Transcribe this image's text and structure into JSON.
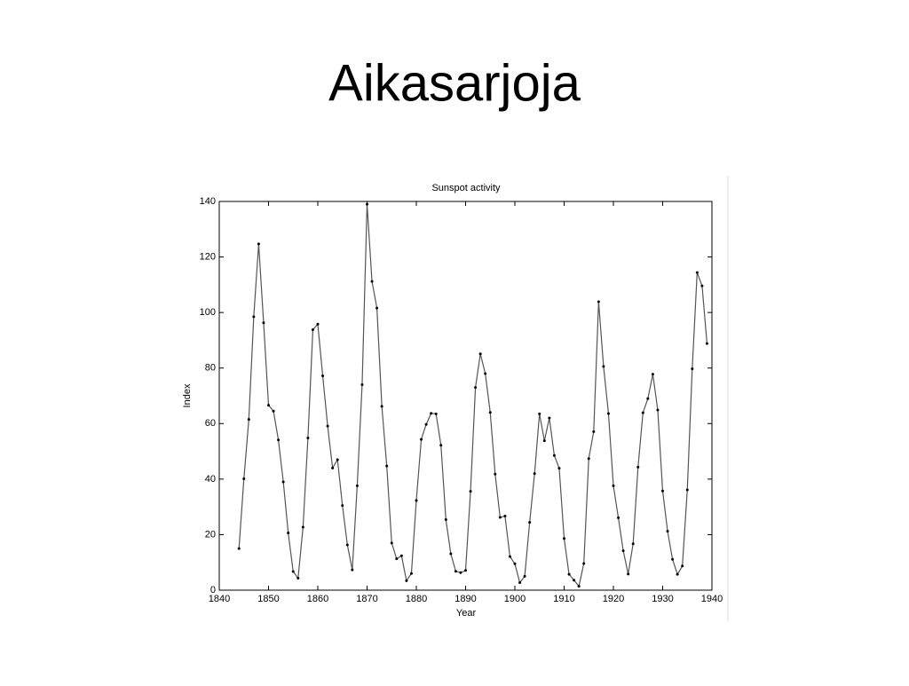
{
  "slide_title": "Aikasarjoja",
  "chart_data": {
    "type": "line",
    "title": "Sunspot activity",
    "xlabel": "Year",
    "ylabel": "Index",
    "x": [
      1844,
      1845,
      1846,
      1847,
      1848,
      1849,
      1850,
      1851,
      1852,
      1853,
      1854,
      1855,
      1856,
      1857,
      1858,
      1859,
      1860,
      1861,
      1862,
      1863,
      1864,
      1865,
      1866,
      1867,
      1868,
      1869,
      1870,
      1871,
      1872,
      1873,
      1874,
      1875,
      1876,
      1877,
      1878,
      1879,
      1880,
      1881,
      1882,
      1883,
      1884,
      1885,
      1886,
      1887,
      1888,
      1889,
      1890,
      1891,
      1892,
      1893,
      1894,
      1895,
      1896,
      1897,
      1898,
      1899,
      1900,
      1901,
      1902,
      1903,
      1904,
      1905,
      1906,
      1907,
      1908,
      1909,
      1910,
      1911,
      1912,
      1913,
      1914,
      1915,
      1916,
      1917,
      1918,
      1919,
      1920,
      1921,
      1922,
      1923,
      1924,
      1925,
      1926,
      1927,
      1928,
      1929,
      1930,
      1931,
      1932,
      1933,
      1934,
      1935,
      1936,
      1937,
      1938,
      1939
    ],
    "values": [
      15.0,
      40.1,
      61.5,
      98.5,
      124.7,
      96.3,
      66.6,
      64.5,
      54.1,
      39.0,
      20.6,
      6.7,
      4.3,
      22.7,
      54.8,
      93.8,
      95.8,
      77.2,
      59.1,
      44.0,
      47.0,
      30.5,
      16.3,
      7.3,
      37.6,
      74.0,
      139.0,
      111.2,
      101.6,
      66.2,
      44.7,
      17.0,
      11.3,
      12.4,
      3.4,
      6.0,
      32.3,
      54.3,
      59.7,
      63.7,
      63.5,
      52.2,
      25.4,
      13.1,
      6.8,
      6.3,
      7.1,
      35.6,
      73.0,
      85.1,
      78.0,
      64.0,
      41.8,
      26.2,
      26.7,
      12.1,
      9.5,
      2.7,
      5.0,
      24.4,
      42.0,
      63.5,
      53.8,
      62.0,
      48.5,
      43.9,
      18.6,
      5.7,
      3.6,
      1.4,
      9.6,
      47.4,
      57.1,
      103.9,
      80.6,
      63.6,
      37.6,
      26.1,
      14.2,
      5.8,
      16.7,
      44.3,
      63.9,
      69.0,
      77.8,
      64.9,
      35.7,
      21.2,
      11.1,
      5.7,
      8.7,
      36.1,
      79.7,
      114.4,
      109.6,
      88.8
    ],
    "color": "#555555",
    "xlim": [
      1840,
      1940
    ],
    "xticks": [
      1840,
      1850,
      1860,
      1870,
      1880,
      1890,
      1900,
      1910,
      1920,
      1930,
      1940
    ],
    "ylim": [
      0,
      140
    ],
    "yticks": [
      0,
      20,
      40,
      60,
      80,
      100,
      120,
      140
    ]
  }
}
